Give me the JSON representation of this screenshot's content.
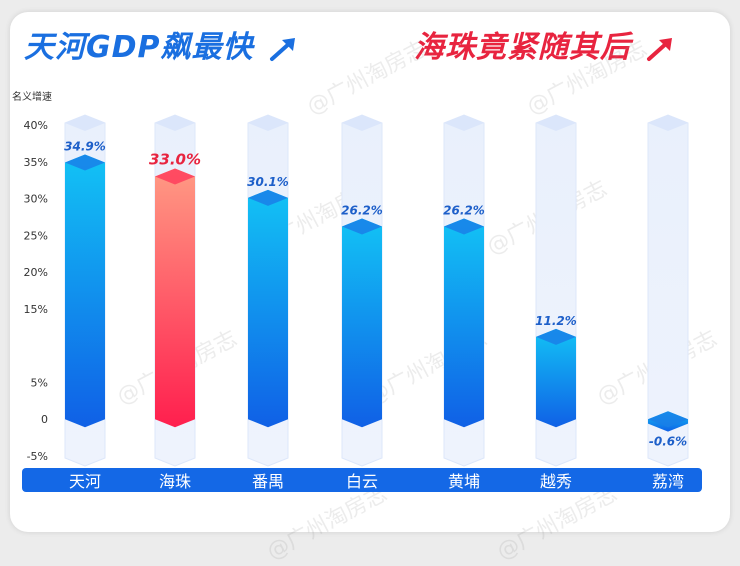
{
  "titles": {
    "left": "天河GDP飙最快",
    "right": "海珠竟紧随其后"
  },
  "watermark": "@广州淘房志",
  "colors": {
    "blue_top": "#12c3f5",
    "blue_bottom": "#1060e6",
    "red_top": "#ff8a7a",
    "red_bottom": "#ff1f4e",
    "highlight_label": "#e8243f",
    "label": "#1d5fc9",
    "track": "#e3ecfb",
    "category_bar": "#1468e6"
  },
  "chart_data": {
    "type": "bar",
    "ylabel": "名义增速",
    "ylim": [
      -5,
      40
    ],
    "yticks": [
      -5,
      0,
      5,
      15,
      20,
      25,
      30,
      35,
      40
    ],
    "ytick_labels": [
      "-5%",
      "0",
      "5%",
      "15%",
      "20%",
      "25%",
      "30%",
      "35%",
      "40%"
    ],
    "categories": [
      "天河",
      "海珠",
      "番禺",
      "白云",
      "黄埔",
      "越秀",
      "荔湾"
    ],
    "values": [
      34.9,
      33.0,
      30.1,
      26.2,
      26.2,
      11.2,
      -0.6
    ],
    "value_labels": [
      "34.9%",
      "33.0%",
      "30.1%",
      "26.2%",
      "26.2%",
      "11.2%",
      "-0.6%"
    ],
    "highlight": "海珠"
  }
}
